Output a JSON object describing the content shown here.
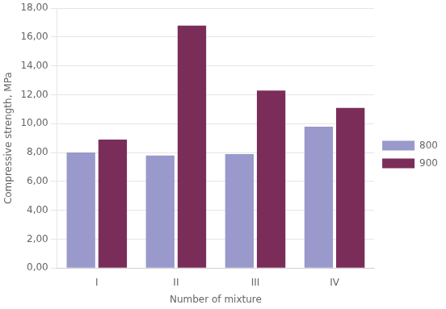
{
  "chart_data": {
    "type": "bar",
    "categories": [
      "I",
      "II",
      "III",
      "IV"
    ],
    "series": [
      {
        "name": "800",
        "color": "#9999CC",
        "values": [
          8.0,
          7.8,
          7.9,
          9.8
        ]
      },
      {
        "name": "900",
        "color": "#7B2D5A",
        "values": [
          8.9,
          16.8,
          12.3,
          11.1
        ]
      }
    ],
    "xlabel": "Number of mixture",
    "ylabel": "Compressive strength, MPa",
    "ylim": [
      0,
      18
    ],
    "yticks": [
      {
        "value": 0,
        "label": "0,00"
      },
      {
        "value": 2,
        "label": "2,00"
      },
      {
        "value": 4,
        "label": "4,00"
      },
      {
        "value": 6,
        "label": "6,00"
      },
      {
        "value": 8,
        "label": "8,00"
      },
      {
        "value": 10,
        "label": "10,00"
      },
      {
        "value": 12,
        "label": "12,00"
      },
      {
        "value": 14,
        "label": "14,00"
      },
      {
        "value": 16,
        "label": "16,00"
      },
      {
        "value": 18,
        "label": "18,00"
      }
    ],
    "grid": true,
    "legend": "right"
  }
}
